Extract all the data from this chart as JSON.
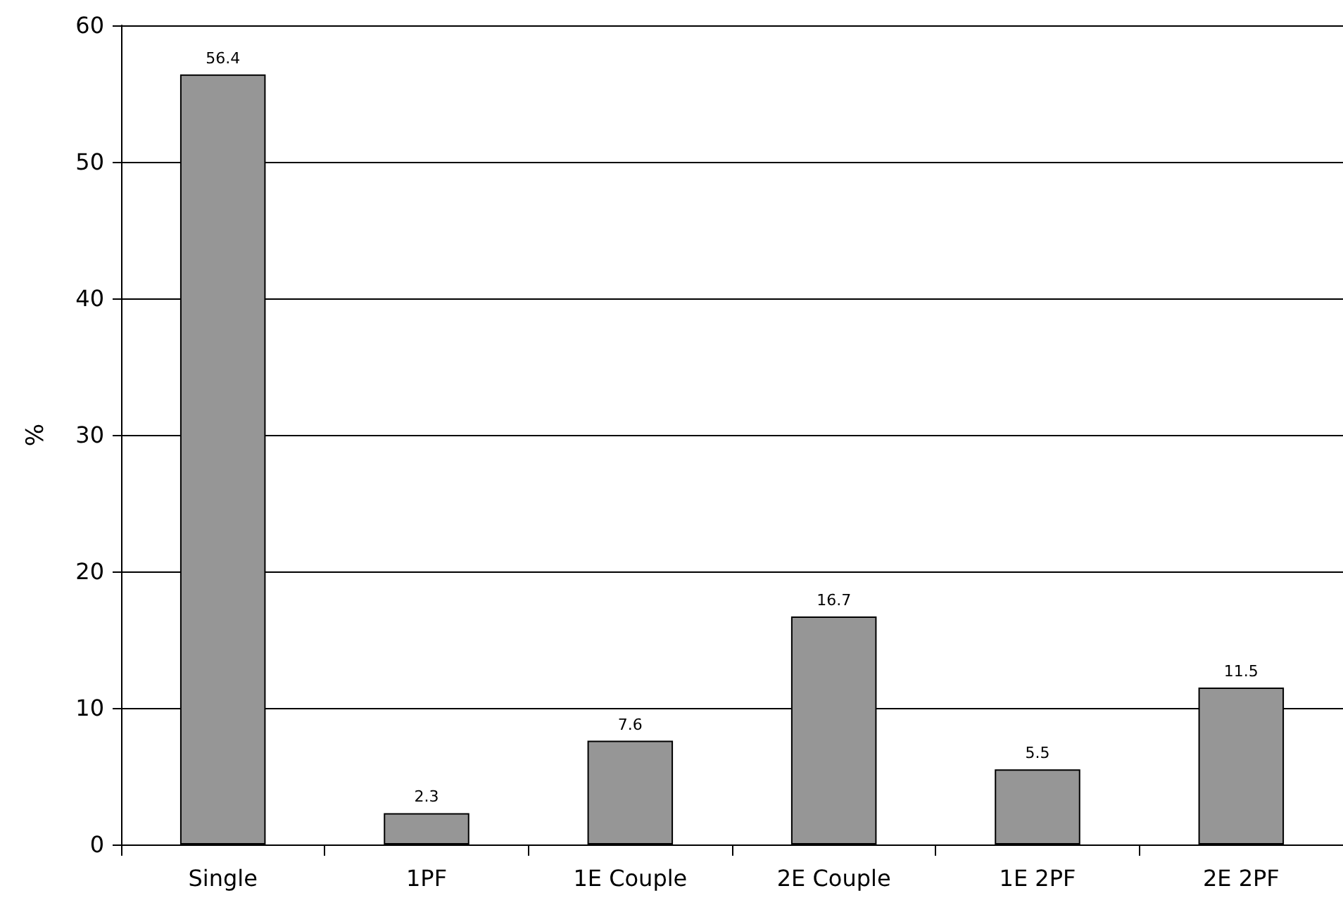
{
  "chart_data": {
    "type": "bar",
    "ylabel": "%",
    "categories": [
      "Single",
      "1PF",
      "1E Couple",
      "2E Couple",
      "1E 2PF",
      "2E 2PF"
    ],
    "values": [
      56.4,
      2.3,
      7.6,
      16.7,
      5.5,
      11.5
    ],
    "color": "#969696",
    "ylim": [
      0,
      60
    ],
    "yticks": [
      0,
      10,
      20,
      30,
      40,
      50,
      60
    ],
    "grid": "y",
    "data_labels": true
  }
}
